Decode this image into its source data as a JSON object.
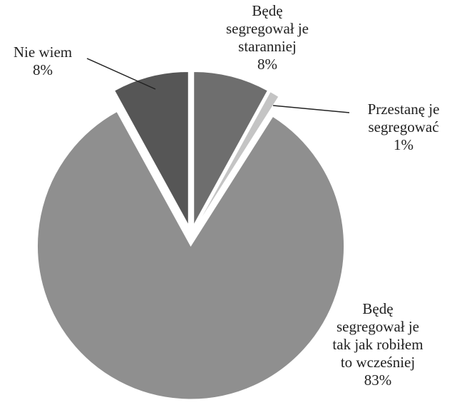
{
  "chart_data": {
    "type": "pie",
    "categories": [
      "Będę\nsegregował je\nstaranniej",
      "Przestanę je\nsegregować",
      "Będę\nsegregował je\ntak jak robiłem\nto wcześniej",
      "Nie wiem"
    ],
    "values": [
      8,
      1,
      83,
      8
    ],
    "value_labels": [
      "8%",
      "1%",
      "83%",
      "8%"
    ],
    "colors": [
      "#6e6e6e",
      "#c4c4c4",
      "#8f8f8f",
      "#565656"
    ]
  }
}
